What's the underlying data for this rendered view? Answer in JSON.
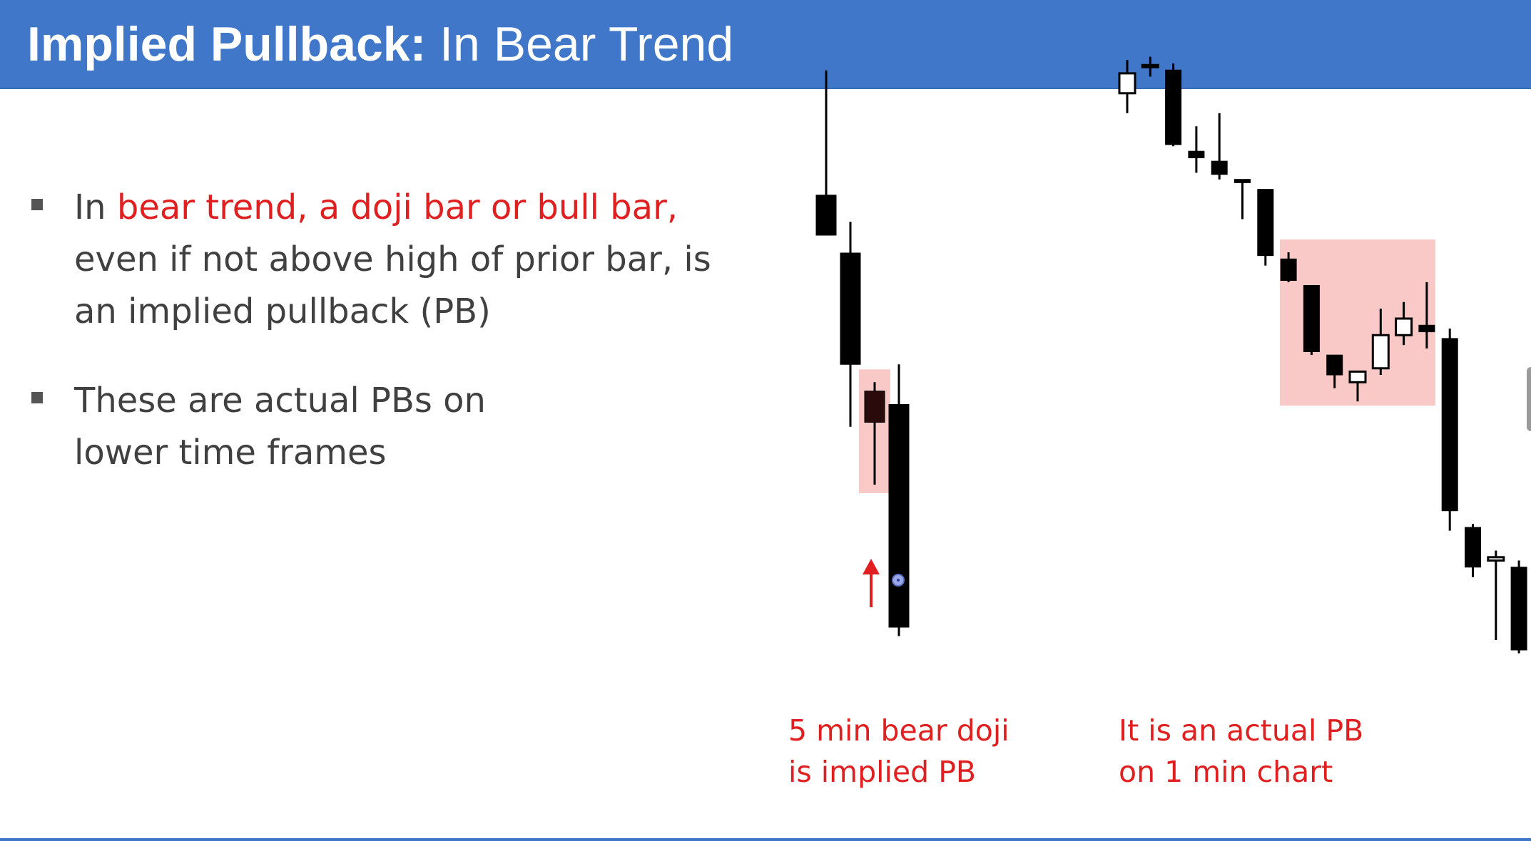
{
  "header": {
    "title_bold": "Implied Pullback:",
    "title_rest": "In Bear Trend",
    "background": "#4077c8"
  },
  "bullets": [
    {
      "parts": [
        {
          "text": "In ",
          "highlight": false
        },
        {
          "text": "bear trend, a doji bar or bull bar,",
          "highlight": true
        },
        {
          "text": " even if not above high of prior bar, is an implied pullback (PB)",
          "highlight": false
        }
      ]
    },
    {
      "parts": [
        {
          "text": "These are actual PBs on lower time frames",
          "highlight": false
        }
      ]
    }
  ],
  "captions": {
    "left_line1": "5 min bear doji",
    "left_line2": "is implied PB",
    "right_line1": "It is an actual PB",
    "right_line2": "on 1 min chart"
  },
  "colors": {
    "accent_red": "#e02020",
    "highlight_box": "#f8c9c6",
    "bar_fill": "#000000"
  },
  "icons": {
    "pullback_arrow": "up-arrow-icon",
    "cursor": "cursor-dot-icon"
  },
  "chart_data": [
    {
      "type": "candlestick",
      "timeframe": "5 min",
      "bars": [
        {
          "open": 105,
          "high": 133,
          "low": 96,
          "close": 96,
          "color": "bear"
        },
        {
          "open": 92,
          "high": 99,
          "low": 53,
          "close": 67,
          "color": "bear"
        },
        {
          "open": 61,
          "high": 63,
          "low": 40,
          "close": 54,
          "color": "bear",
          "highlighted": true
        },
        {
          "open": 58,
          "high": 67,
          "low": 6,
          "close": 8,
          "color": "bear"
        }
      ],
      "highlight": {
        "bar_index": 2,
        "label": "implied PB"
      }
    },
    {
      "type": "candlestick",
      "timeframe": "1 min",
      "bars": [
        {
          "open": 88,
          "high": 98,
          "low": 82,
          "close": 94,
          "color": "bull"
        },
        {
          "open": 96,
          "high": 99,
          "low": 93,
          "close": 96.5,
          "color": "bull"
        },
        {
          "open": 95,
          "high": 97,
          "low": 72,
          "close": 72.5,
          "color": "bear"
        },
        {
          "open": 70.5,
          "high": 78,
          "low": 64,
          "close": 68.5,
          "color": "bear"
        },
        {
          "open": 67.5,
          "high": 82,
          "low": 62,
          "close": 63.5,
          "color": "bear"
        },
        {
          "open": 62,
          "high": 62,
          "low": 50,
          "close": 61,
          "color": "bear"
        },
        {
          "open": 59,
          "high": 59,
          "low": 36,
          "close": 39,
          "color": "bear"
        },
        {
          "open": 38,
          "high": 40,
          "low": 31,
          "close": 31.5,
          "color": "bear"
        },
        {
          "open": 30,
          "high": 30,
          "low": 9,
          "close": 10,
          "color": "bear"
        },
        {
          "open": 9,
          "high": 9,
          "low": -1,
          "close": 3,
          "color": "bear"
        },
        {
          "open": 0.8,
          "high": 4,
          "low": -5,
          "close": 4,
          "color": "bull"
        },
        {
          "open": 5,
          "high": 23,
          "low": 3,
          "close": 15,
          "color": "bull"
        },
        {
          "open": 15,
          "high": 25,
          "low": 12,
          "close": 20,
          "color": "bull"
        },
        {
          "open": 18,
          "high": 31,
          "low": 11,
          "close": 16,
          "color": "bear"
        },
        {
          "open": 14,
          "high": 17,
          "low": -44,
          "close": -38,
          "color": "bear"
        },
        {
          "open": -43,
          "high": -42,
          "low": -58,
          "close": -55,
          "color": "bear"
        },
        {
          "open": -52,
          "high": -50,
          "low": -77,
          "close": -53,
          "color": "bull"
        },
        {
          "open": -55,
          "high": -53,
          "low": -81,
          "close": -80,
          "color": "bear"
        }
      ],
      "highlight": {
        "from_bar": 7,
        "to_bar": 13,
        "label": "actual PB"
      }
    }
  ]
}
